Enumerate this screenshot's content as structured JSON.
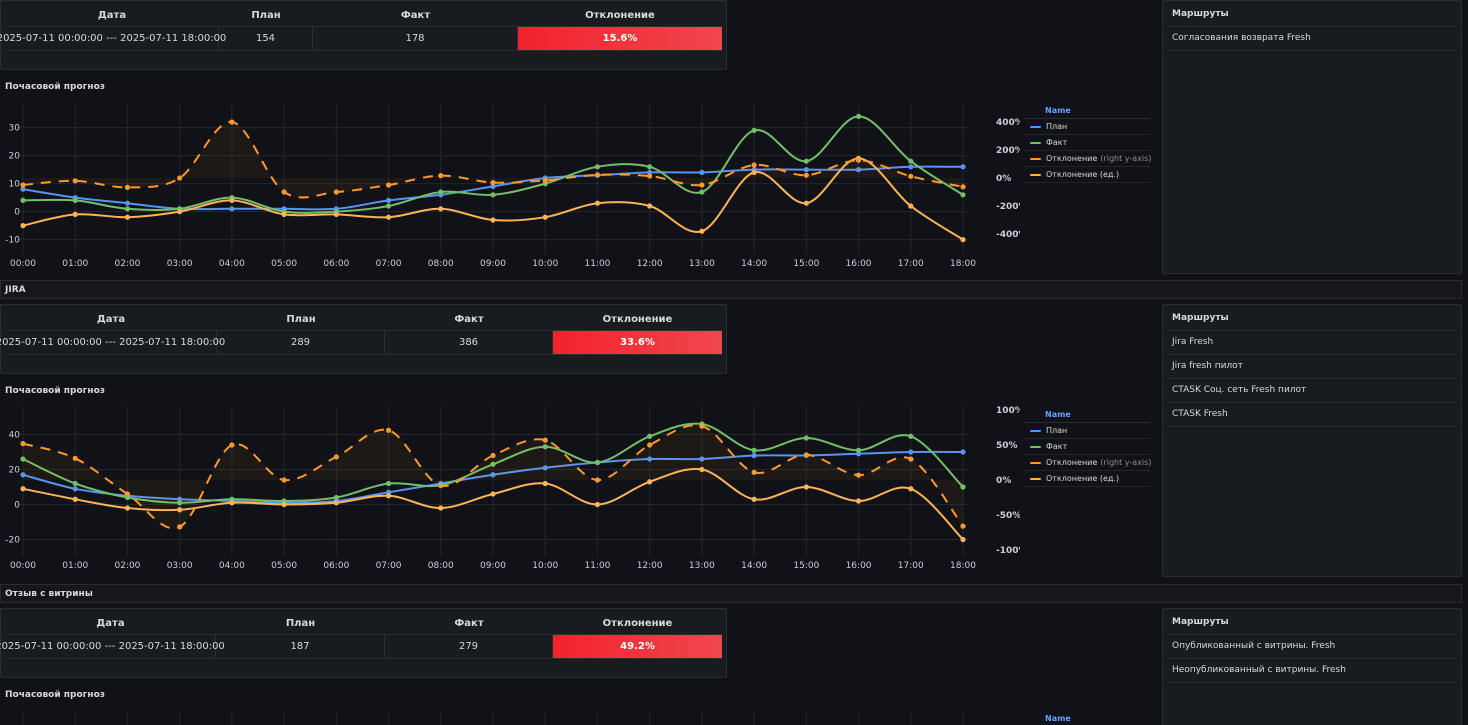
{
  "colors": {
    "plan": "#5794f2",
    "fact": "#73bf69",
    "dev_pct": "#ff9830",
    "dev_units": "#ffb357",
    "deviation_bg": "#f2222c"
  },
  "table_headers": {
    "date": "Дата",
    "plan": "План",
    "fact": "Факт",
    "deviation": "Отклонение"
  },
  "forecast_title": "Почасовой прогноз",
  "routes_title": "Маршруты",
  "legend": {
    "header": "Name",
    "plan": "План",
    "fact": "Факт",
    "dev_pct": "Отклонение",
    "dev_pct_note": "(right y-axis)",
    "dev_units": "Отклонение (ед.)"
  },
  "sections": [
    {
      "title": "",
      "summary": {
        "date": "2025-07-11 00:00:00 --- 2025-07-11 18:00:00",
        "plan": "154",
        "fact": "178",
        "deviation": "15.6%"
      },
      "routes": [
        "Согласования возврата Fresh"
      ]
    },
    {
      "title": "JIRA",
      "summary": {
        "date": "2025-07-11 00:00:00 --- 2025-07-11 18:00:00",
        "plan": "289",
        "fact": "386",
        "deviation": "33.6%"
      },
      "routes": [
        "Jira Fresh",
        "Jira fresh пилот",
        "CTASK Соц. сеть Fresh пилот",
        "CTASK Fresh"
      ]
    },
    {
      "title": "Отзыв с витрины",
      "summary": {
        "date": "2025-07-11 00:00:00 --- 2025-07-11 18:00:00",
        "plan": "187",
        "fact": "279",
        "deviation": "49.2%"
      },
      "routes": [
        "Опубликованный с витрины. Fresh",
        "Неопубликованный с витрины. Fresh"
      ]
    }
  ],
  "chart_data": [
    {
      "type": "line",
      "x": [
        "00:00",
        "01:00",
        "02:00",
        "03:00",
        "04:00",
        "05:00",
        "06:00",
        "07:00",
        "08:00",
        "09:00",
        "10:00",
        "11:00",
        "12:00",
        "13:00",
        "14:00",
        "15:00",
        "16:00",
        "17:00",
        "18:00"
      ],
      "ylim": [
        -13,
        37
      ],
      "yticks": [
        "-10",
        "0",
        "10",
        "20",
        "30"
      ],
      "y2lim": [
        -500,
        500
      ],
      "y2ticks": [
        "-400%",
        "-200%",
        "0%",
        "200%",
        "400%"
      ],
      "series": [
        {
          "name": "План",
          "axis": "left",
          "color": "#5794f2",
          "values": [
            8,
            5,
            3,
            1,
            1,
            1,
            1,
            4,
            6,
            9,
            12,
            13,
            14,
            14,
            15,
            15,
            15,
            16,
            16
          ]
        },
        {
          "name": "Факт",
          "axis": "left",
          "color": "#73bf69",
          "values": [
            4,
            4,
            1,
            1,
            5,
            0,
            0,
            2,
            7,
            6,
            10,
            16,
            16,
            7,
            29,
            18,
            34,
            18,
            6
          ]
        },
        {
          "name": "Отклонение",
          "axis": "right",
          "color": "#ff9830",
          "dashed": true,
          "values": [
            -50,
            -20,
            -67,
            0,
            400,
            -100,
            -100,
            -50,
            17,
            -33,
            -17,
            23,
            14,
            -50,
            93,
            20,
            127,
            12,
            -63
          ]
        },
        {
          "name": "Отклонение (ед.)",
          "axis": "left",
          "color": "#ffb357",
          "values": [
            -5,
            -1,
            -2,
            0,
            4,
            -1,
            -1,
            -2,
            1,
            -3,
            -2,
            3,
            2,
            -7,
            14,
            3,
            19,
            2,
            -10
          ]
        }
      ]
    },
    {
      "type": "line",
      "x": [
        "00:00",
        "01:00",
        "02:00",
        "03:00",
        "04:00",
        "05:00",
        "06:00",
        "07:00",
        "08:00",
        "09:00",
        "10:00",
        "11:00",
        "12:00",
        "13:00",
        "14:00",
        "15:00",
        "16:00",
        "17:00",
        "18:00"
      ],
      "ylim": [
        -26,
        54
      ],
      "yticks": [
        "-20",
        "0",
        "20",
        "40"
      ],
      "y2lim": [
        -100,
        100
      ],
      "y2ticks": [
        "-100%",
        "-50%",
        "0%",
        "50%",
        "100%"
      ],
      "series": [
        {
          "name": "План",
          "axis": "left",
          "color": "#5794f2",
          "values": [
            17,
            9,
            5,
            3,
            2,
            1,
            2,
            7,
            12,
            17,
            21,
            24,
            26,
            26,
            28,
            28,
            29,
            30,
            30
          ]
        },
        {
          "name": "Факт",
          "axis": "left",
          "color": "#73bf69",
          "values": [
            26,
            12,
            4,
            1,
            3,
            2,
            4,
            12,
            11,
            23,
            33,
            24,
            39,
            46,
            31,
            38,
            31,
            39,
            10
          ]
        },
        {
          "name": "Отклонение",
          "axis": "right",
          "color": "#ff9830",
          "dashed": true,
          "values": [
            52,
            31,
            -20,
            -67,
            50,
            0,
            33,
            71,
            -8,
            35,
            57,
            0,
            50,
            77,
            11,
            36,
            7,
            30,
            -66
          ]
        },
        {
          "name": "Отклонение (ед.)",
          "axis": "left",
          "color": "#ffb357",
          "values": [
            9,
            3,
            -2,
            -3,
            1,
            0,
            1,
            5,
            -2,
            6,
            12,
            0,
            13,
            20,
            3,
            10,
            2,
            9,
            -20
          ]
        }
      ]
    },
    {
      "type": "line",
      "x": [],
      "series": []
    }
  ]
}
